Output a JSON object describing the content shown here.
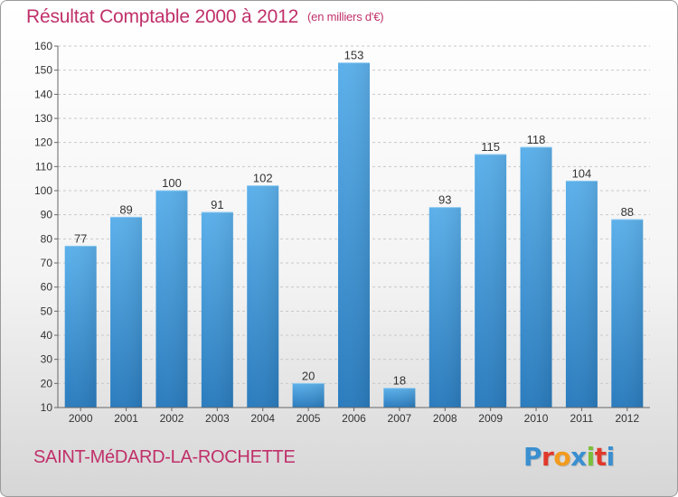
{
  "header": {
    "title": "Résultat Comptable 2000 à 2012",
    "unit": "(en milliers d'€)"
  },
  "footer": {
    "commune": "SAINT-MéDARD-LA-ROCHETTE",
    "logo_letters": [
      "P",
      "r",
      "o",
      "x",
      "i",
      "t",
      "i"
    ],
    "logo_colors": [
      "#3a8fd0",
      "#e0392b",
      "#f29b1d",
      "#3a8fd0",
      "#7cbf3a",
      "#e0392b",
      "#3a8fd0"
    ]
  },
  "colors": {
    "bar_light": "#5aace6",
    "bar_dark": "#2a7ec0",
    "title": "#c0306a"
  },
  "chart_data": {
    "type": "bar",
    "categories": [
      "2000",
      "2001",
      "2002",
      "2003",
      "2004",
      "2005",
      "2006",
      "2007",
      "2008",
      "2009",
      "2010",
      "2011",
      "2012"
    ],
    "values": [
      77,
      89,
      100,
      91,
      102,
      20,
      153,
      18,
      93,
      115,
      118,
      104,
      88
    ],
    "ylim": [
      10,
      160
    ],
    "yticks": [
      10,
      20,
      30,
      40,
      50,
      60,
      70,
      80,
      90,
      100,
      110,
      120,
      130,
      140,
      150,
      160
    ],
    "grid": true,
    "data_labels": true
  }
}
